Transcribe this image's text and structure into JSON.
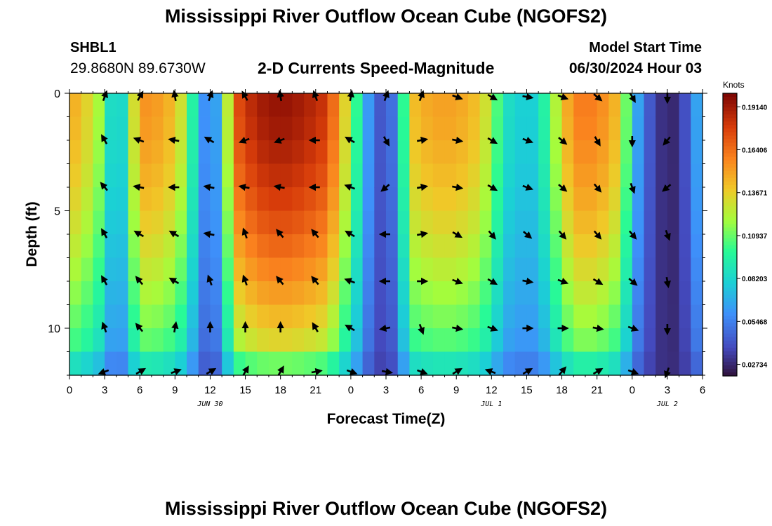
{
  "page": {
    "title": "Mississippi River Outflow Ocean Cube (NGOFS2)",
    "station": {
      "id": "SHBL1",
      "coords": "29.8680N  89.6730W"
    },
    "subtitle": "2-D Currents Speed-Magnitude",
    "model_start": {
      "label": "Model Start Time",
      "value": "06/30/2024 Hour 03"
    },
    "footer_title": "Mississippi River Outflow Ocean Cube (NGOFS2)"
  },
  "chart_data": {
    "type": "heatmap",
    "title": "2-D Currents Speed-Magnitude",
    "xlabel": "Forecast Time(Z)",
    "ylabel": "Depth (ft)",
    "xlim": [
      0,
      54
    ],
    "ylim": [
      0,
      12
    ],
    "x_ticks": [
      {
        "t": 0,
        "label": "0"
      },
      {
        "t": 3,
        "label": "3"
      },
      {
        "t": 6,
        "label": "6"
      },
      {
        "t": 9,
        "label": "9"
      },
      {
        "t": 12,
        "label": "12"
      },
      {
        "t": 15,
        "label": "15"
      },
      {
        "t": 18,
        "label": "18"
      },
      {
        "t": 21,
        "label": "21"
      },
      {
        "t": 24,
        "label": "0"
      },
      {
        "t": 27,
        "label": "3"
      },
      {
        "t": 30,
        "label": "6"
      },
      {
        "t": 33,
        "label": "9"
      },
      {
        "t": 36,
        "label": "12"
      },
      {
        "t": 39,
        "label": "15"
      },
      {
        "t": 42,
        "label": "18"
      },
      {
        "t": 45,
        "label": "21"
      },
      {
        "t": 48,
        "label": "0"
      },
      {
        "t": 51,
        "label": "3"
      },
      {
        "t": 54,
        "label": "6"
      }
    ],
    "date_labels": [
      {
        "t": 12,
        "label": "JUN 30"
      },
      {
        "t": 36,
        "label": "JUL 1"
      },
      {
        "t": 51,
        "label": "JUL 2"
      }
    ],
    "y_ticks": [
      {
        "d": 0,
        "label": "0"
      },
      {
        "d": 5,
        "label": "5"
      },
      {
        "d": 10,
        "label": "10"
      }
    ],
    "colorbar": {
      "label": "Knots",
      "range": [
        0.02,
        0.2
      ],
      "ticks": [
        "0.19140",
        "0.16406",
        "0.13671",
        "0.10937",
        "0.08203",
        "0.05468",
        "0.02734"
      ],
      "tick_values": [
        0.1914,
        0.16406,
        0.13671,
        0.10937,
        0.08203,
        0.05468,
        0.02734
      ]
    },
    "time_profile_knots": [
      [
        0,
        0.15
      ],
      [
        2,
        0.13
      ],
      [
        3,
        0.11
      ],
      [
        4,
        0.06
      ],
      [
        6,
        0.155
      ],
      [
        8,
        0.15
      ],
      [
        9,
        0.14
      ],
      [
        10,
        0.12
      ],
      [
        11,
        0.07
      ],
      [
        12,
        0.05
      ],
      [
        13,
        0.08
      ],
      [
        14,
        0.17
      ],
      [
        16,
        0.19
      ],
      [
        18,
        0.195
      ],
      [
        20,
        0.19
      ],
      [
        22,
        0.18
      ],
      [
        24,
        0.12
      ],
      [
        25,
        0.08
      ],
      [
        26,
        0.045
      ],
      [
        27,
        0.04
      ],
      [
        28,
        0.06
      ],
      [
        29,
        0.14
      ],
      [
        31,
        0.15
      ],
      [
        33,
        0.15
      ],
      [
        35,
        0.14
      ],
      [
        36,
        0.12
      ],
      [
        37,
        0.09
      ],
      [
        38,
        0.08
      ],
      [
        40,
        0.08
      ],
      [
        41,
        0.11
      ],
      [
        43,
        0.16
      ],
      [
        45,
        0.16
      ],
      [
        47,
        0.14
      ],
      [
        48,
        0.08
      ],
      [
        49,
        0.05
      ],
      [
        50,
        0.035
      ],
      [
        51,
        0.025
      ],
      [
        52,
        0.03
      ],
      [
        53,
        0.05
      ],
      [
        54,
        0.08
      ]
    ],
    "vector_times": [
      3,
      6,
      9,
      12,
      15,
      18,
      21,
      24,
      27,
      30,
      33,
      36,
      39,
      42,
      45,
      48,
      51
    ],
    "vector_depths_ft": [
      0,
      2,
      4,
      6,
      8,
      10,
      12
    ],
    "vector_directions_deg": [
      [
        20,
        30,
        350,
        20,
        330,
        350,
        340,
        10,
        20,
        20,
        110,
        120,
        100,
        110,
        130,
        150,
        180
      ],
      [
        330,
        290,
        280,
        300,
        250,
        250,
        270,
        300,
        150,
        80,
        100,
        120,
        110,
        130,
        150,
        180,
        220
      ],
      [
        320,
        280,
        270,
        280,
        280,
        280,
        270,
        290,
        230,
        80,
        100,
        120,
        110,
        130,
        140,
        160,
        230
      ],
      [
        330,
        300,
        300,
        280,
        340,
        320,
        320,
        300,
        270,
        80,
        120,
        140,
        130,
        140,
        140,
        140,
        160
      ],
      [
        330,
        320,
        300,
        340,
        340,
        320,
        320,
        290,
        270,
        90,
        110,
        120,
        100,
        110,
        120,
        130,
        170
      ],
      [
        340,
        320,
        10,
        0,
        0,
        0,
        330,
        300,
        260,
        160,
        100,
        110,
        90,
        90,
        100,
        110,
        180
      ],
      [
        250,
        60,
        70,
        60,
        30,
        30,
        80,
        110,
        100,
        110,
        60,
        290,
        60,
        40,
        60,
        110,
        200
      ]
    ]
  }
}
